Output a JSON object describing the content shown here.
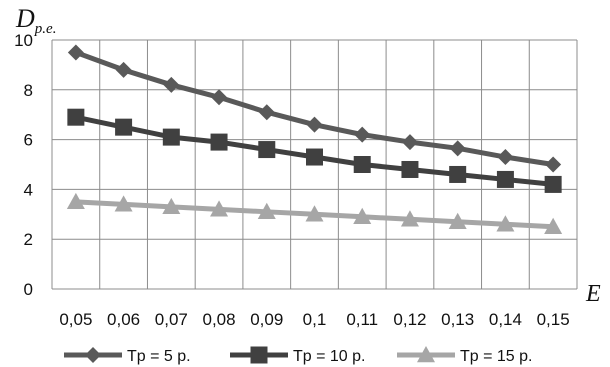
{
  "chart_data": {
    "type": "line",
    "title": "",
    "xlabel": "E",
    "ylabel_main": "D",
    "ylabel_sub": "р.е.",
    "x": [
      "0,05",
      "0,06",
      "0,07",
      "0,08",
      "0,09",
      "0,1",
      "0,11",
      "0,12",
      "0,13",
      "0,14",
      "0,15"
    ],
    "yticks": [
      "0",
      "2",
      "4",
      "6",
      "8",
      "10"
    ],
    "ylim": [
      0,
      10
    ],
    "grid": true,
    "legend_position": "bottom",
    "series": [
      {
        "name": "Tp = 5 р.",
        "marker": "diamond",
        "color": "#595959",
        "values": [
          9.5,
          8.8,
          8.2,
          7.7,
          7.1,
          6.6,
          6.2,
          5.9,
          5.65,
          5.3,
          5.0
        ]
      },
      {
        "name": "Tp = 10 р.",
        "marker": "square",
        "color": "#404040",
        "values": [
          6.9,
          6.5,
          6.1,
          5.9,
          5.6,
          5.3,
          5.0,
          4.8,
          4.6,
          4.4,
          4.2
        ]
      },
      {
        "name": "Tp = 15 р.",
        "marker": "triangle",
        "color": "#a6a6a6",
        "values": [
          3.5,
          3.4,
          3.3,
          3.2,
          3.1,
          3.0,
          2.9,
          2.8,
          2.7,
          2.6,
          2.5
        ]
      }
    ]
  }
}
